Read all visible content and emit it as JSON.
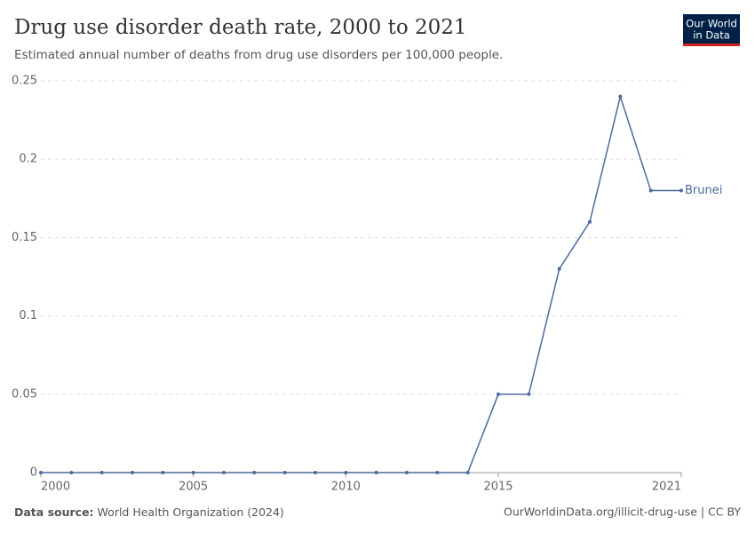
{
  "chart_data": {
    "type": "line",
    "title": "Drug use disorder death rate, 2000 to 2021",
    "subtitle": "Estimated annual number of deaths from drug use disorders per 100,000 people.",
    "x": [
      2000,
      2001,
      2002,
      2003,
      2004,
      2005,
      2006,
      2007,
      2008,
      2009,
      2010,
      2011,
      2012,
      2013,
      2014,
      2015,
      2016,
      2017,
      2018,
      2019,
      2020,
      2021
    ],
    "series": [
      {
        "name": "Brunei",
        "color": "#4c6a9c",
        "values": [
          0,
          0,
          0,
          0,
          0,
          0,
          0,
          0,
          0,
          0,
          0,
          0,
          0,
          0,
          0,
          0.05,
          0.05,
          0.13,
          0.16,
          0.24,
          0.18,
          0.18
        ]
      }
    ],
    "xlim": [
      2000,
      2021
    ],
    "xticks": [
      2000,
      2005,
      2010,
      2015,
      2021
    ],
    "ylim": [
      0,
      0.25
    ],
    "yticks": [
      0,
      0.05,
      0.1,
      0.15,
      0.2,
      0.25
    ],
    "grid": true,
    "source_label": "Data source:",
    "source": "World Health Organization (2024)",
    "footer_right": "OurWorldinData.org/illicit-drug-use | CC BY"
  },
  "logo": [
    "Our World",
    "in Data"
  ]
}
